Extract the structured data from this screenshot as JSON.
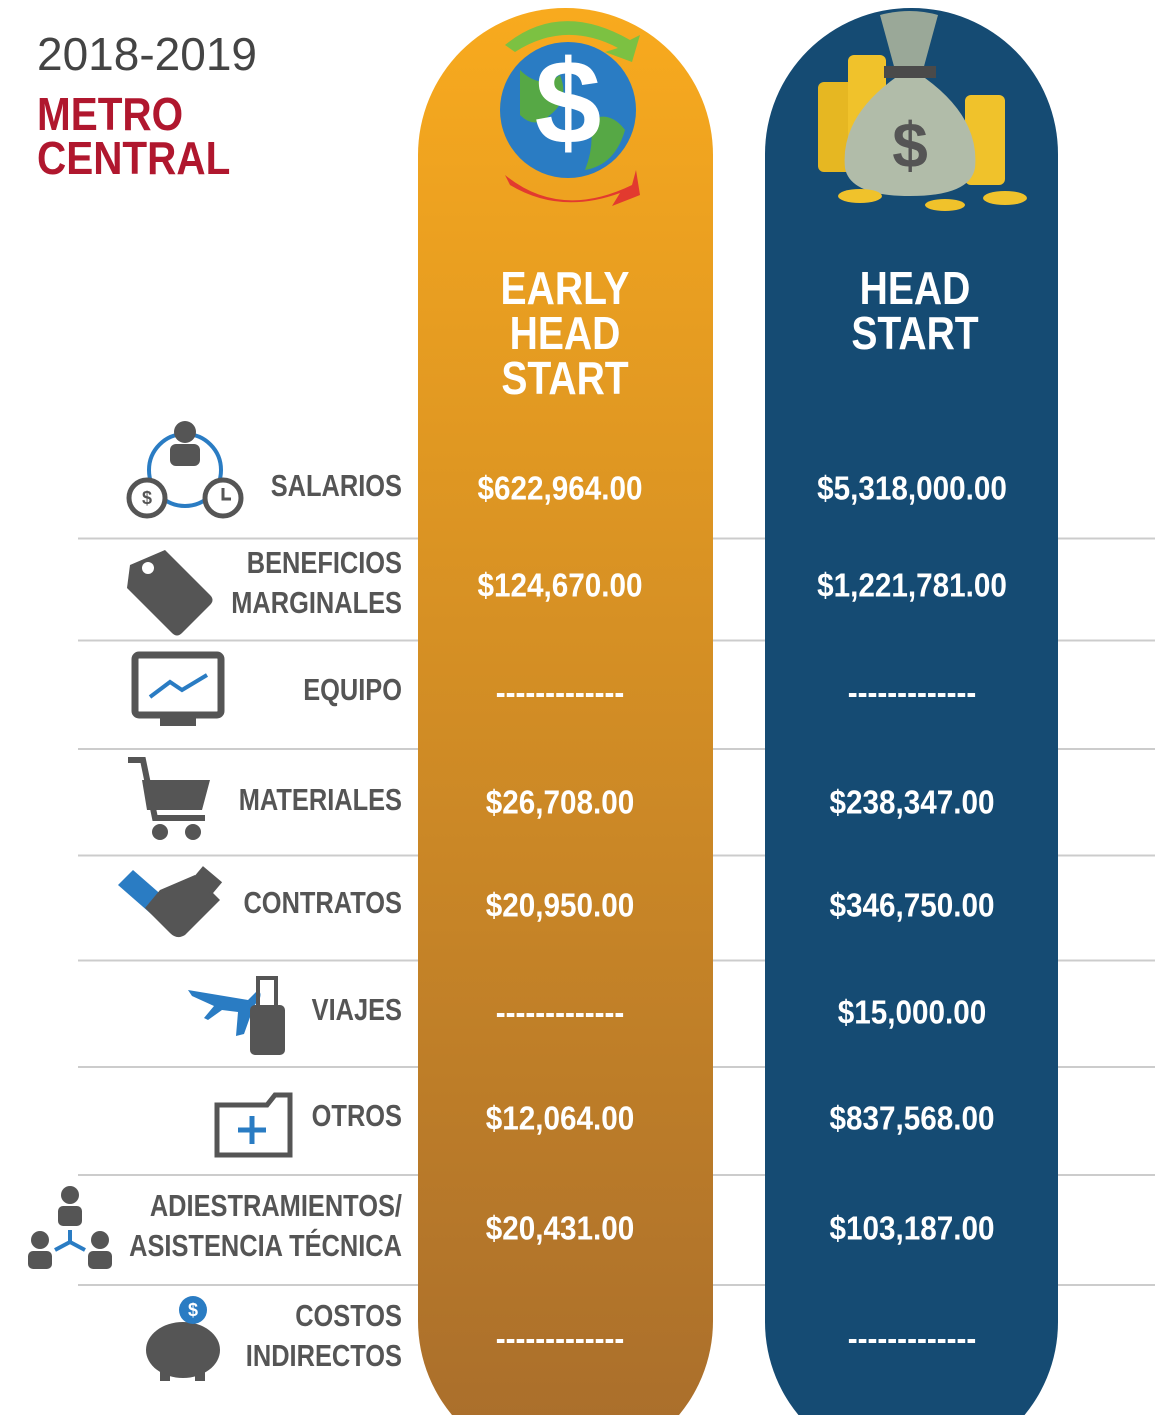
{
  "header": {
    "year": "2018-2019",
    "title": [
      "METRO",
      "CENTRAL"
    ]
  },
  "columns": [
    {
      "name": [
        "EARLY",
        "HEAD",
        "START"
      ]
    },
    {
      "name": [
        "HEAD",
        "START"
      ]
    }
  ],
  "table": {
    "rows": [
      {
        "label": [
          "SALARIOS"
        ],
        "values": [
          "$622,964.00",
          "$5,318,000.00"
        ]
      },
      {
        "label": [
          "BENEFICIOS",
          "MARGINALES"
        ],
        "values": [
          "$124,670.00",
          "$1,221,781.00"
        ]
      },
      {
        "label": [
          "EQUIPO"
        ],
        "values": [
          "-------------",
          "-------------"
        ]
      },
      {
        "label": [
          "MATERIALES"
        ],
        "values": [
          "$26,708.00",
          "$238,347.00"
        ]
      },
      {
        "label": [
          "CONTRATOS"
        ],
        "values": [
          "$20,950.00",
          "$346,750.00"
        ]
      },
      {
        "label": [
          "VIAJES"
        ],
        "values": [
          "-------------",
          "$15,000.00"
        ]
      },
      {
        "label": [
          "OTROS"
        ],
        "values": [
          "$12,064.00",
          "$837,568.00"
        ]
      },
      {
        "label": [
          "ADIESTRAMIENTOS/",
          "ASISTENCIA TÉCNICA"
        ],
        "values": [
          "$20,431.00",
          "$103,187.00"
        ]
      },
      {
        "label": [
          "COSTOS",
          "INDIRECTOS"
        ],
        "values": [
          "-------------",
          "-------------"
        ]
      }
    ]
  }
}
